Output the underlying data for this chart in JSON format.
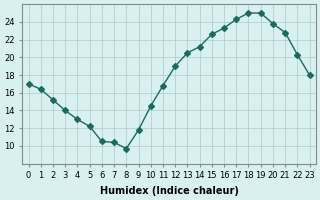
{
  "x": [
    0,
    1,
    2,
    3,
    4,
    5,
    6,
    7,
    8,
    9,
    10,
    11,
    12,
    13,
    14,
    15,
    16,
    17,
    18,
    19,
    20,
    21,
    22,
    23
  ],
  "y": [
    17.0,
    16.4,
    15.2,
    14.0,
    13.0,
    12.2,
    10.5,
    10.4,
    9.7,
    11.8,
    14.5,
    16.8,
    19.0,
    20.5,
    21.2,
    22.6,
    23.3,
    24.3,
    25.0,
    25.0,
    23.8,
    22.8,
    20.3,
    18.0
  ],
  "line_color": "#1a6b5e",
  "marker": "D",
  "marker_size": 3,
  "bg_color": "#d8f0f0",
  "grid_color": "#b0c8c8",
  "xlabel": "Humidex (Indice chaleur)",
  "ylim": [
    8,
    26
  ],
  "yticks": [
    10,
    12,
    14,
    16,
    18,
    20,
    22,
    24
  ],
  "xticks": [
    0,
    1,
    2,
    3,
    4,
    5,
    6,
    7,
    8,
    9,
    10,
    11,
    12,
    13,
    14,
    15,
    16,
    17,
    18,
    19,
    20,
    21,
    22,
    23
  ],
  "axis_fontsize": 7,
  "tick_fontsize": 6
}
